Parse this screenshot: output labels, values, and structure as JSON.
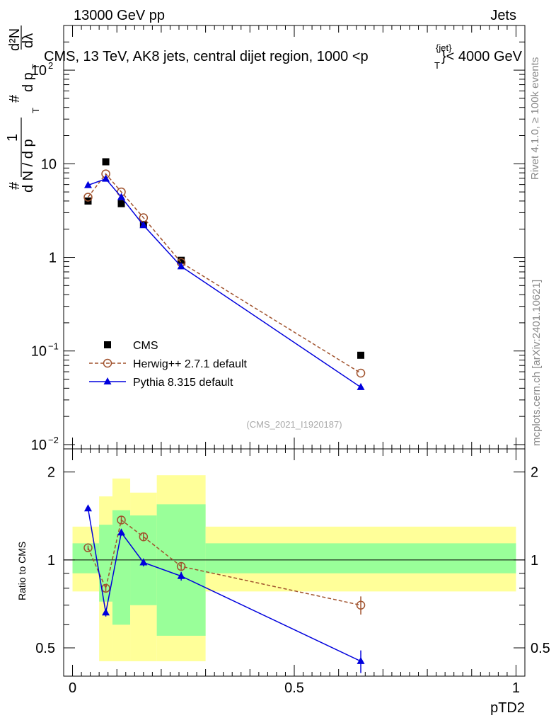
{
  "header": {
    "energy_label": "13000 GeV pp",
    "category_label": "Jets",
    "rivet_label": "Rivet 4.1.0, ≥ 100k events",
    "mcplots_label": "mcplots.cern.ch [arXiv:2401.10621]",
    "analysis_label": "(CMS_2021_I1920187)"
  },
  "chart_data": [
    {
      "type": "scatter",
      "panel": "main",
      "title": "CMS, 13 TeV, AK8 jets, central dijet region, 1000 <p",
      "title_sub": "T",
      "title_sup": "{jet}",
      "title_tail": "}< 4000 GeV",
      "ylabel_parts": [
        "#",
        "1",
        "d N / d p",
        "T",
        "#",
        "d p",
        "T",
        "d²N",
        "dλ"
      ],
      "yscale": "log",
      "ylim": [
        0.009,
        300
      ],
      "xlim": [
        -0.02,
        1.02
      ],
      "yticks": [
        {
          "value": 0.01,
          "base": "10",
          "exp": "−2"
        },
        {
          "value": 0.1,
          "base": "10",
          "exp": "−1"
        },
        {
          "value": 1,
          "base": "1",
          "exp": ""
        },
        {
          "value": 10,
          "base": "10",
          "exp": ""
        },
        {
          "value": 100,
          "base": "10",
          "exp": "2"
        }
      ],
      "legend_position": "bottom-left",
      "series": [
        {
          "name": "CMS",
          "style": "square-marker",
          "color": "#000000",
          "x": [
            0.035,
            0.075,
            0.11,
            0.16,
            0.245,
            0.65
          ],
          "y": [
            4.0,
            10.5,
            3.75,
            2.25,
            0.93,
            0.09
          ]
        },
        {
          "name": "Herwig++ 2.7.1 default",
          "style": "open-circle-dashed",
          "color": "#a0522d",
          "x": [
            0.035,
            0.075,
            0.11,
            0.16,
            0.245,
            0.65
          ],
          "y": [
            4.4,
            7.8,
            5.0,
            2.65,
            0.88,
            0.058
          ]
        },
        {
          "name": "Pythia 8.315 default",
          "style": "triangle-solid",
          "color": "#0000dd",
          "x": [
            0.035,
            0.075,
            0.11,
            0.16,
            0.245,
            0.65
          ],
          "y": [
            5.9,
            6.9,
            4.4,
            2.2,
            0.8,
            0.041
          ]
        }
      ]
    },
    {
      "type": "scatter",
      "panel": "ratio",
      "ylabel": "Ratio to CMS",
      "xlabel": "pTD2",
      "yscale": "log",
      "ylim": [
        0.4,
        2.4
      ],
      "xlim": [
        -0.02,
        1.02
      ],
      "yticks": [
        {
          "value": 0.5,
          "label": "0.5"
        },
        {
          "value": 1,
          "label": "1"
        },
        {
          "value": 2,
          "label": "2"
        }
      ],
      "xticks": [
        {
          "value": 0,
          "label": "0"
        },
        {
          "value": 0.5,
          "label": "0.5"
        },
        {
          "value": 1,
          "label": "1"
        }
      ],
      "reference_line": 1,
      "uncertainty_bands": [
        {
          "x0": 0.0,
          "x1": 0.06,
          "yellow": [
            0.78,
            1.3
          ],
          "green": [
            0.9,
            1.14
          ]
        },
        {
          "x0": 0.06,
          "x1": 0.09,
          "yellow": [
            0.45,
            1.65
          ],
          "green": [
            0.72,
            1.32
          ]
        },
        {
          "x0": 0.09,
          "x1": 0.13,
          "yellow": [
            0.45,
            1.9
          ],
          "green": [
            0.6,
            1.48
          ]
        },
        {
          "x0": 0.13,
          "x1": 0.19,
          "yellow": [
            0.45,
            1.7
          ],
          "green": [
            0.7,
            1.42
          ]
        },
        {
          "x0": 0.19,
          "x1": 0.3,
          "yellow": [
            0.45,
            1.95
          ],
          "green": [
            0.55,
            1.55
          ]
        },
        {
          "x0": 0.3,
          "x1": 1.0,
          "yellow": [
            0.78,
            1.3
          ],
          "green": [
            0.9,
            1.14
          ]
        }
      ],
      "series": [
        {
          "name": "Herwig++ 2.7.1 default",
          "style": "open-circle-dashed",
          "color": "#a0522d",
          "x": [
            0.035,
            0.075,
            0.11,
            0.16,
            0.245,
            0.65
          ],
          "y": [
            1.1,
            0.8,
            1.37,
            1.2,
            0.95,
            0.7
          ],
          "err": [
            0.02,
            0.02,
            0.04,
            0.04,
            0.03,
            0.05
          ]
        },
        {
          "name": "Pythia 8.315 default",
          "style": "triangle-solid",
          "color": "#0000dd",
          "x": [
            0.035,
            0.075,
            0.11,
            0.16,
            0.245,
            0.65
          ],
          "y": [
            1.5,
            0.66,
            1.24,
            0.98,
            0.88,
            0.45
          ],
          "err": [
            0.02,
            0.02,
            0.03,
            0.03,
            0.03,
            0.04
          ]
        }
      ]
    }
  ]
}
